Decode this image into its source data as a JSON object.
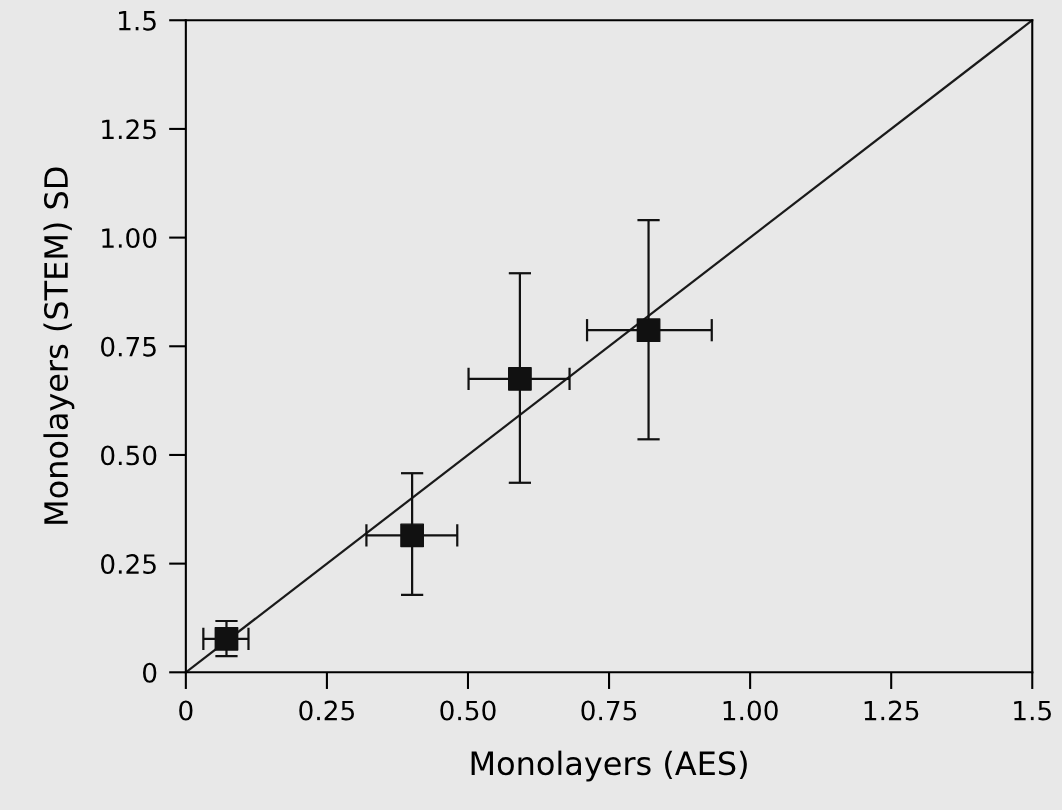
{
  "chart_data": {
    "type": "scatter",
    "xlabel": "Monolayers (AES)",
    "ylabel": "Monolayers (STEM) SD",
    "xlim": [
      0,
      1.5
    ],
    "ylim": [
      0,
      1.5
    ],
    "xticks": [
      0,
      0.25,
      {
        "value": 0.5,
        "label": "0.50"
      },
      0.75,
      {
        "value": 1.0,
        "label": "1.00"
      },
      1.25,
      1.5
    ],
    "yticks": [
      0,
      0.25,
      {
        "value": 0.5,
        "label": "0.50"
      },
      0.75,
      {
        "value": 1.0,
        "label": "1.00"
      },
      1.25,
      1.5
    ],
    "grid": false,
    "legend": false,
    "series": [
      {
        "type": "line",
        "color": "#1a1a1a",
        "x": [
          0,
          1.5
        ],
        "values": [
          0,
          1.5
        ],
        "marker": "none",
        "line_style": "solid"
      },
      {
        "type": "scatter",
        "color": "#111111",
        "marker": "square",
        "x": [
          0.072,
          0.401,
          0.592,
          0.82
        ],
        "values": [
          0.077,
          0.315,
          0.675,
          0.787
        ],
        "errors": [
          [
            0.037,
            0.118
          ],
          [
            0.178,
            0.458
          ],
          [
            0.436,
            0.918
          ],
          [
            0.536,
            1.04
          ]
        ],
        "xerrors": [
          [
            0.031,
            0.111
          ],
          [
            0.32,
            0.481
          ],
          [
            0.501,
            0.68
          ],
          [
            0.711,
            0.932
          ]
        ]
      }
    ]
  }
}
